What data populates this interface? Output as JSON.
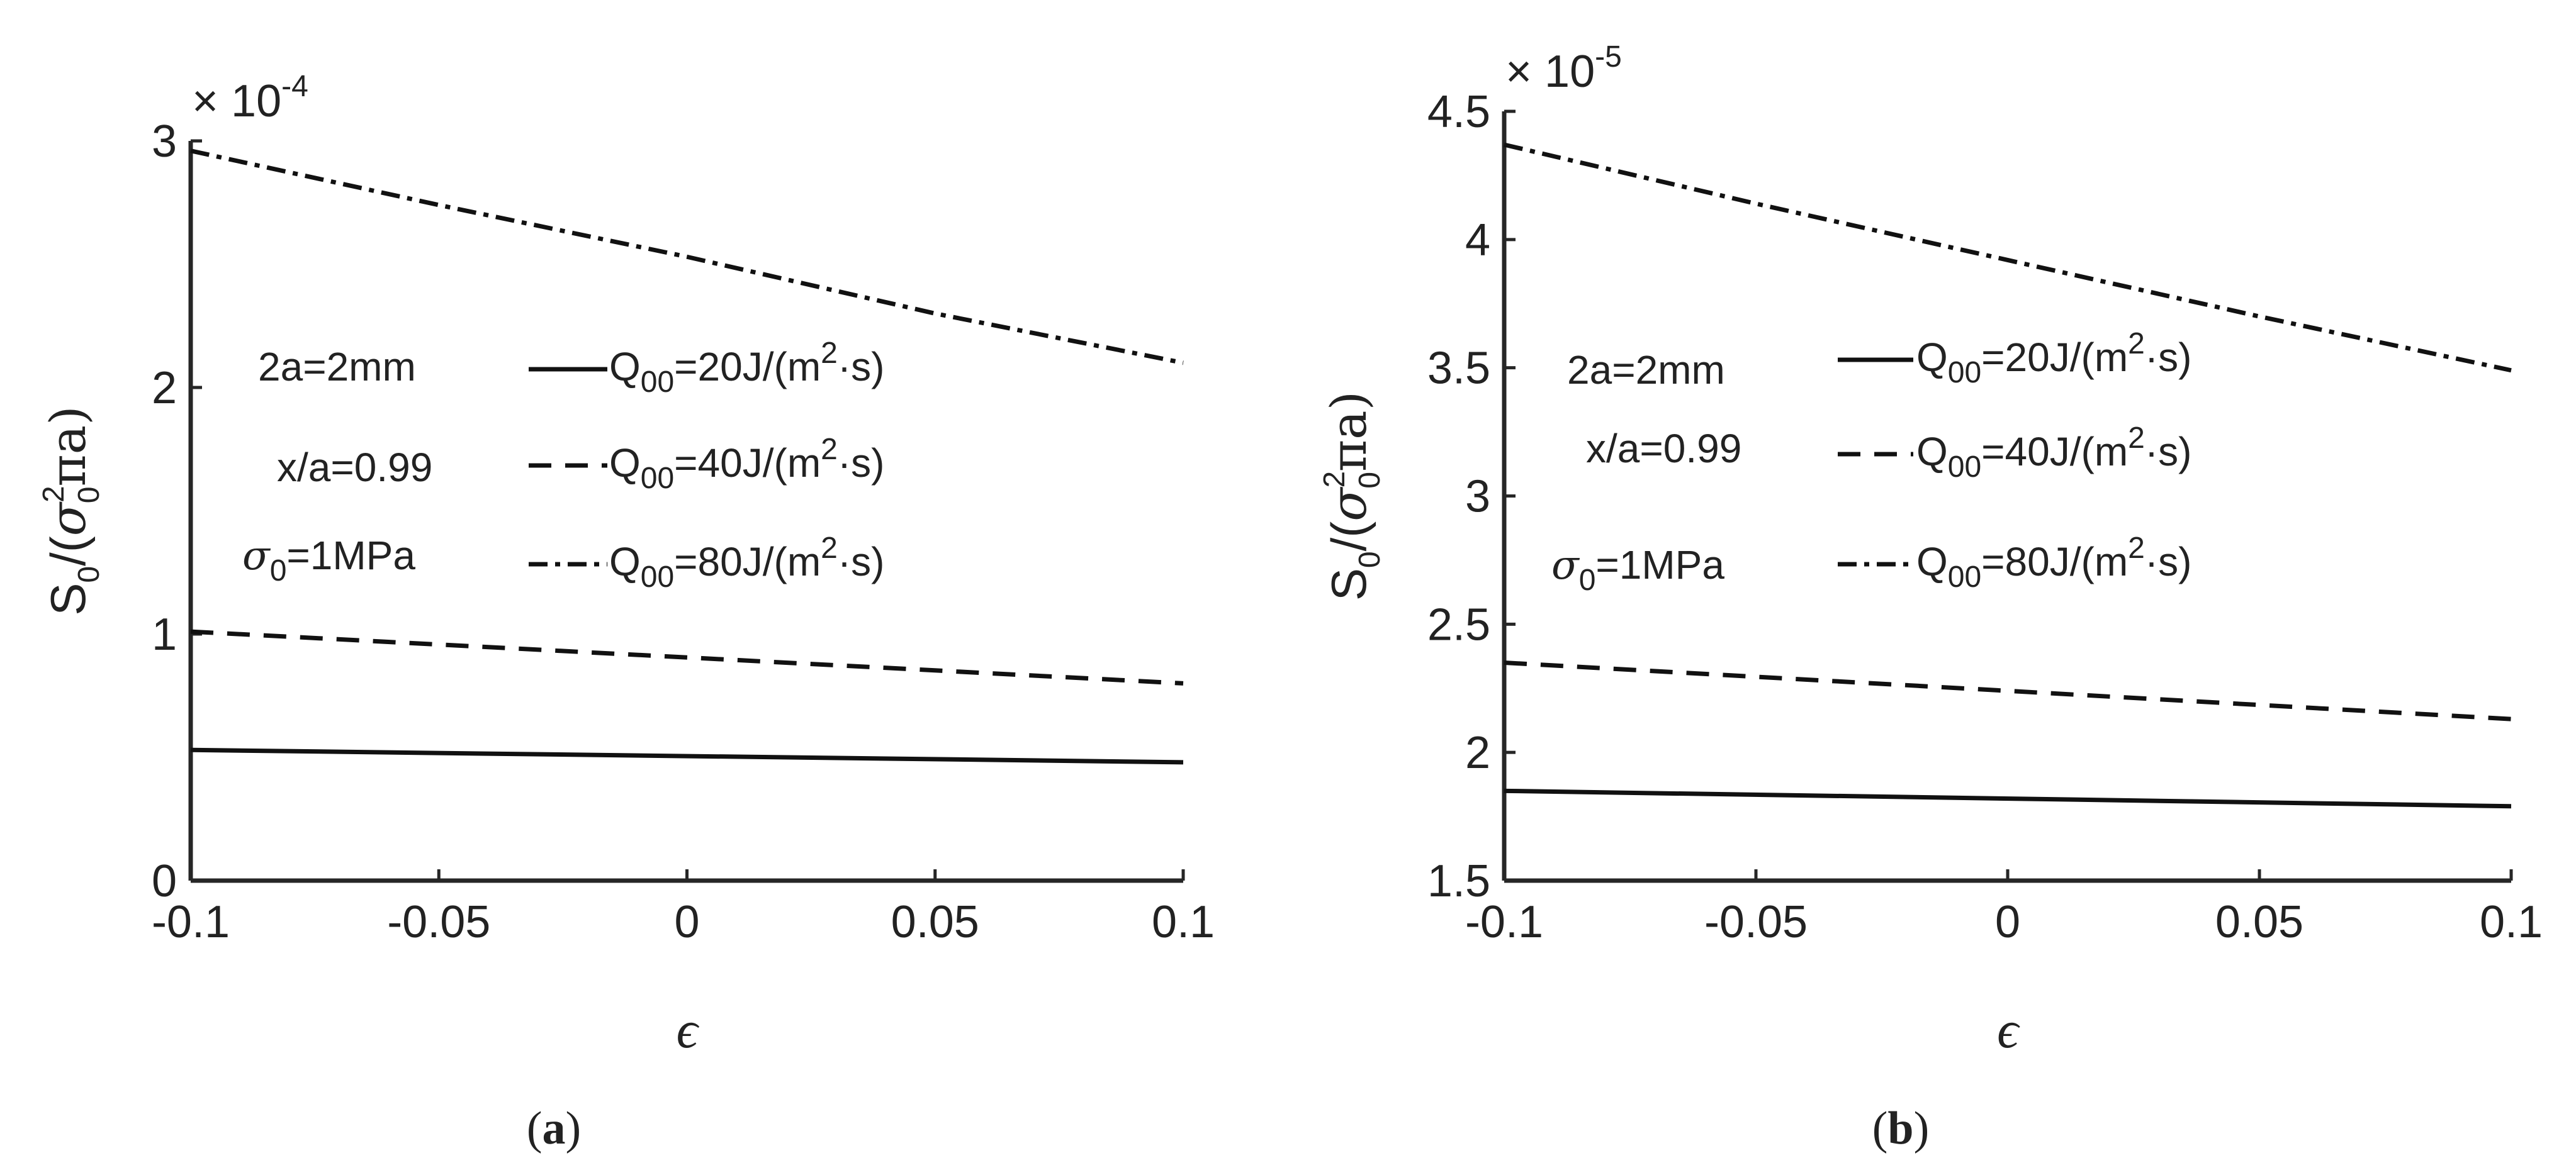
{
  "chart_data": [
    {
      "type": "line",
      "panel_label": "(a)",
      "multiplier": {
        "base": "× 10",
        "exp": "-4"
      },
      "xlabel": "ϵ",
      "ylabel": {
        "s": "S",
        "s_sub": "0",
        "slash": "/(",
        "sigma": "σ",
        "sigma_sup": "2",
        "sigma_sub": "0",
        "rest": "πa)"
      },
      "xlim": [
        -0.1,
        0.1
      ],
      "ylim": [
        0,
        3
      ],
      "xticks": [
        -0.1,
        -0.05,
        0,
        0.05,
        0.1
      ],
      "xtick_labels": [
        "-0.1",
        "-0.05",
        "0",
        "0.05",
        "0.1"
      ],
      "yticks": [
        0,
        1,
        2,
        3
      ],
      "ytick_labels": [
        "0",
        "1",
        "2",
        "3"
      ],
      "annotations": {
        "a": "2a=2mm",
        "xa": "x/a=0.99",
        "sigma_sym": "σ",
        "sigma_sub": "0",
        "sigma_val": "=1MPa"
      },
      "series": [
        {
          "name": "Q00=20J/(m2·s)",
          "label_main": "Q",
          "label_sub": "00",
          "label_mid": "=20J/(m",
          "label_sup": "2",
          "label_end": "·s)",
          "style": "solid",
          "x": [
            -0.1,
            0.1
          ],
          "y": [
            0.53,
            0.48
          ]
        },
        {
          "name": "Q00=40J/(m2·s)",
          "label_main": "Q",
          "label_sub": "00",
          "label_mid": "=40J/(m",
          "label_sup": "2",
          "label_end": "·s)",
          "style": "dashed",
          "x": [
            -0.1,
            0.1
          ],
          "y": [
            1.01,
            0.8
          ]
        },
        {
          "name": "Q00=80J/(m2·s)",
          "label_main": "Q",
          "label_sub": "00",
          "label_mid": "=80J/(m",
          "label_sup": "2",
          "label_end": "·s)",
          "style": "dashdot",
          "x": [
            -0.1,
            -0.05,
            0,
            0.05,
            0.1
          ],
          "y": [
            2.96,
            2.74,
            2.53,
            2.3,
            2.1
          ]
        }
      ]
    },
    {
      "type": "line",
      "panel_label": "(b)",
      "multiplier": {
        "base": "× 10",
        "exp": "-5"
      },
      "xlabel": "ϵ",
      "ylabel": {
        "s": "S",
        "s_sub": "0",
        "slash": "/(",
        "sigma": "σ",
        "sigma_sup": "2",
        "sigma_sub": "0",
        "rest": "πa)"
      },
      "xlim": [
        -0.1,
        0.1
      ],
      "ylim": [
        1.5,
        4.5
      ],
      "xticks": [
        -0.1,
        -0.05,
        0,
        0.05,
        0.1
      ],
      "xtick_labels": [
        "-0.1",
        "-0.05",
        "0",
        "0.05",
        "0.1"
      ],
      "yticks": [
        1.5,
        2,
        2.5,
        3,
        3.5,
        4,
        4.5
      ],
      "ytick_labels": [
        "1.5",
        "2",
        "2.5",
        "3",
        "3.5",
        "4",
        "4.5"
      ],
      "annotations": {
        "a": "2a=2mm",
        "xa": "x/a=0.99",
        "sigma_sym": "σ",
        "sigma_sub": "0",
        "sigma_val": "=1MPa"
      },
      "series": [
        {
          "name": "Q00=20J/(m2·s)",
          "label_main": "Q",
          "label_sub": "00",
          "label_mid": "=20J/(m",
          "label_sup": "2",
          "label_end": "·s)",
          "style": "solid",
          "x": [
            -0.1,
            0.1
          ],
          "y": [
            1.85,
            1.79
          ]
        },
        {
          "name": "Q00=40J/(m2·s)",
          "label_main": "Q",
          "label_sub": "00",
          "label_mid": "=40J/(m",
          "label_sup": "2",
          "label_end": "·s)",
          "style": "dashed",
          "x": [
            -0.1,
            0.1
          ],
          "y": [
            2.35,
            2.13
          ]
        },
        {
          "name": "Q00=80J/(m2·s)",
          "label_main": "Q",
          "label_sub": "00",
          "label_mid": "=80J/(m",
          "label_sup": "2",
          "label_end": "·s)",
          "style": "dashdot",
          "x": [
            -0.1,
            -0.05,
            0,
            0.05,
            0.1
          ],
          "y": [
            4.37,
            4.14,
            3.92,
            3.7,
            3.49
          ]
        }
      ]
    }
  ]
}
